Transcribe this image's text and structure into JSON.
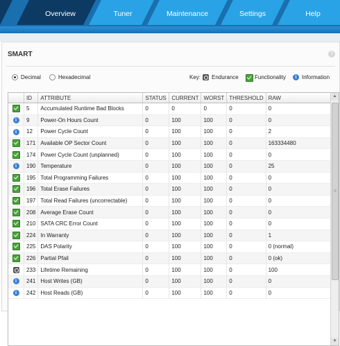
{
  "nav": {
    "tabs": [
      {
        "label": "Overview",
        "active": true
      },
      {
        "label": "Tuner",
        "active": false
      },
      {
        "label": "Maintenance",
        "active": false
      },
      {
        "label": "Settings",
        "active": false
      },
      {
        "label": "Help",
        "active": false
      }
    ],
    "active_color": "#0d3a63",
    "tab_color": "#29a3e6"
  },
  "panel": {
    "title": "SMART",
    "help_icon": "question-icon",
    "format": {
      "options": [
        "Decimal",
        "Hexadecimal"
      ],
      "selected": "Decimal"
    },
    "key": {
      "label": "Key:",
      "items": [
        {
          "icon": "endurance-icon",
          "label": "Endurance"
        },
        {
          "icon": "functionality-icon",
          "label": "Functionality"
        },
        {
          "icon": "information-icon",
          "label": "Information"
        }
      ]
    }
  },
  "table": {
    "columns": [
      "",
      "ID",
      "ATTRIBUTE",
      "STATUS",
      "CURRENT",
      "WORST",
      "THRESHOLD",
      "RAW"
    ],
    "rows": [
      {
        "icon": "check",
        "id": "5",
        "attribute": "Accumulated Runtime Bad Blocks",
        "status": "0",
        "current": "0",
        "worst": "0",
        "threshold": "0",
        "raw": "0"
      },
      {
        "icon": "info",
        "id": "9",
        "attribute": "Power-On Hours Count",
        "status": "0",
        "current": "100",
        "worst": "100",
        "threshold": "0",
        "raw": "0"
      },
      {
        "icon": "info",
        "id": "12",
        "attribute": "Power Cycle Count",
        "status": "0",
        "current": "100",
        "worst": "100",
        "threshold": "0",
        "raw": "2"
      },
      {
        "icon": "check",
        "id": "171",
        "attribute": "Available OP Sector Count",
        "status": "0",
        "current": "100",
        "worst": "100",
        "threshold": "0",
        "raw": "163334480"
      },
      {
        "icon": "check",
        "id": "174",
        "attribute": "Power Cycle Count (unplanned)",
        "status": "0",
        "current": "100",
        "worst": "100",
        "threshold": "0",
        "raw": "0"
      },
      {
        "icon": "info",
        "id": "190",
        "attribute": "Temperature",
        "status": "0",
        "current": "100",
        "worst": "100",
        "threshold": "0",
        "raw": "25"
      },
      {
        "icon": "check",
        "id": "195",
        "attribute": "Total Programming Failures",
        "status": "0",
        "current": "100",
        "worst": "100",
        "threshold": "0",
        "raw": "0"
      },
      {
        "icon": "check",
        "id": "196",
        "attribute": "Total Erase Failures",
        "status": "0",
        "current": "100",
        "worst": "100",
        "threshold": "0",
        "raw": "0"
      },
      {
        "icon": "check",
        "id": "197",
        "attribute": "Total Read Failures (uncorrectable)",
        "status": "0",
        "current": "100",
        "worst": "100",
        "threshold": "0",
        "raw": "0"
      },
      {
        "icon": "check",
        "id": "208",
        "attribute": "Average Erase Count",
        "status": "0",
        "current": "100",
        "worst": "100",
        "threshold": "0",
        "raw": "0"
      },
      {
        "icon": "check",
        "id": "210",
        "attribute": "SATA CRC Error Count",
        "status": "0",
        "current": "100",
        "worst": "100",
        "threshold": "0",
        "raw": "0"
      },
      {
        "icon": "check",
        "id": "224",
        "attribute": "In Warranty",
        "status": "0",
        "current": "100",
        "worst": "100",
        "threshold": "0",
        "raw": "1"
      },
      {
        "icon": "check",
        "id": "225",
        "attribute": "DAS Polarity",
        "status": "0",
        "current": "100",
        "worst": "100",
        "threshold": "0",
        "raw": "0 (normal)"
      },
      {
        "icon": "check",
        "id": "226",
        "attribute": "Partial Pfail",
        "status": "0",
        "current": "100",
        "worst": "100",
        "threshold": "0",
        "raw": "0 (ok)"
      },
      {
        "icon": "gauge",
        "id": "233",
        "attribute": "Lifetime Remaining",
        "status": "0",
        "current": "100",
        "worst": "100",
        "threshold": "0",
        "raw": "100"
      },
      {
        "icon": "info",
        "id": "241",
        "attribute": "Host Writes (GB)",
        "status": "0",
        "current": "100",
        "worst": "100",
        "threshold": "0",
        "raw": "0"
      },
      {
        "icon": "info",
        "id": "242",
        "attribute": "Host Reads (GB)",
        "status": "0",
        "current": "100",
        "worst": "100",
        "threshold": "0",
        "raw": "0"
      }
    ]
  }
}
